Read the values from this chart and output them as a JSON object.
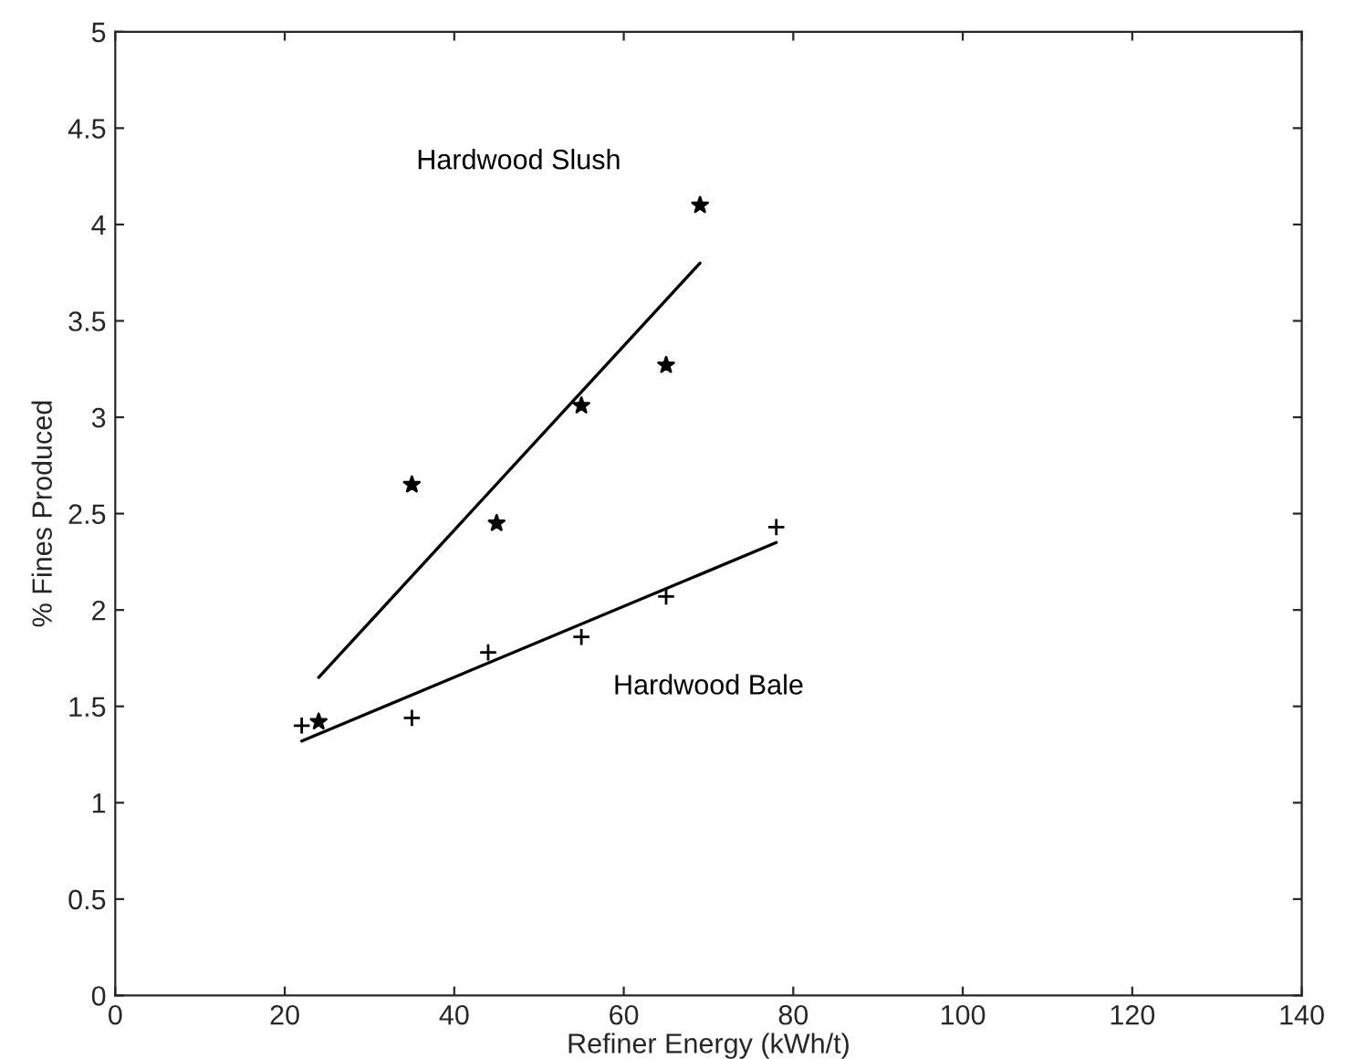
{
  "chart_data": {
    "type": "scatter",
    "xlabel": "Refiner Energy (kWh/t)",
    "ylabel": "% Fines Produced",
    "xlim": [
      0,
      140
    ],
    "xticks": [
      0,
      20,
      40,
      60,
      80,
      100,
      120,
      140
    ],
    "ylim": [
      0,
      5
    ],
    "yticks": [
      0,
      0.5,
      1,
      1.5,
      2,
      2.5,
      3,
      3.5,
      4,
      4.5,
      5
    ],
    "grid": false,
    "series": [
      {
        "name": "Hardwood Slush",
        "marker": "star",
        "color": "#000000",
        "x": [
          24,
          35,
          45,
          55,
          65,
          69
        ],
        "values": [
          1.42,
          2.65,
          2.45,
          3.06,
          3.27,
          4.1
        ]
      },
      {
        "name": "Hardwood Bale",
        "marker": "cross",
        "color": "#000000",
        "x": [
          22,
          35,
          44,
          55,
          65,
          78
        ],
        "values": [
          1.4,
          1.44,
          1.78,
          1.86,
          2.07,
          2.43
        ]
      },
      {
        "type": "line",
        "marker": "none",
        "color": "#000000",
        "x": [
          24,
          69
        ],
        "values": [
          1.65,
          3.8
        ]
      },
      {
        "type": "line",
        "marker": "none",
        "color": "#000000",
        "x": [
          22,
          78
        ],
        "values": [
          1.32,
          2.35
        ]
      }
    ]
  }
}
